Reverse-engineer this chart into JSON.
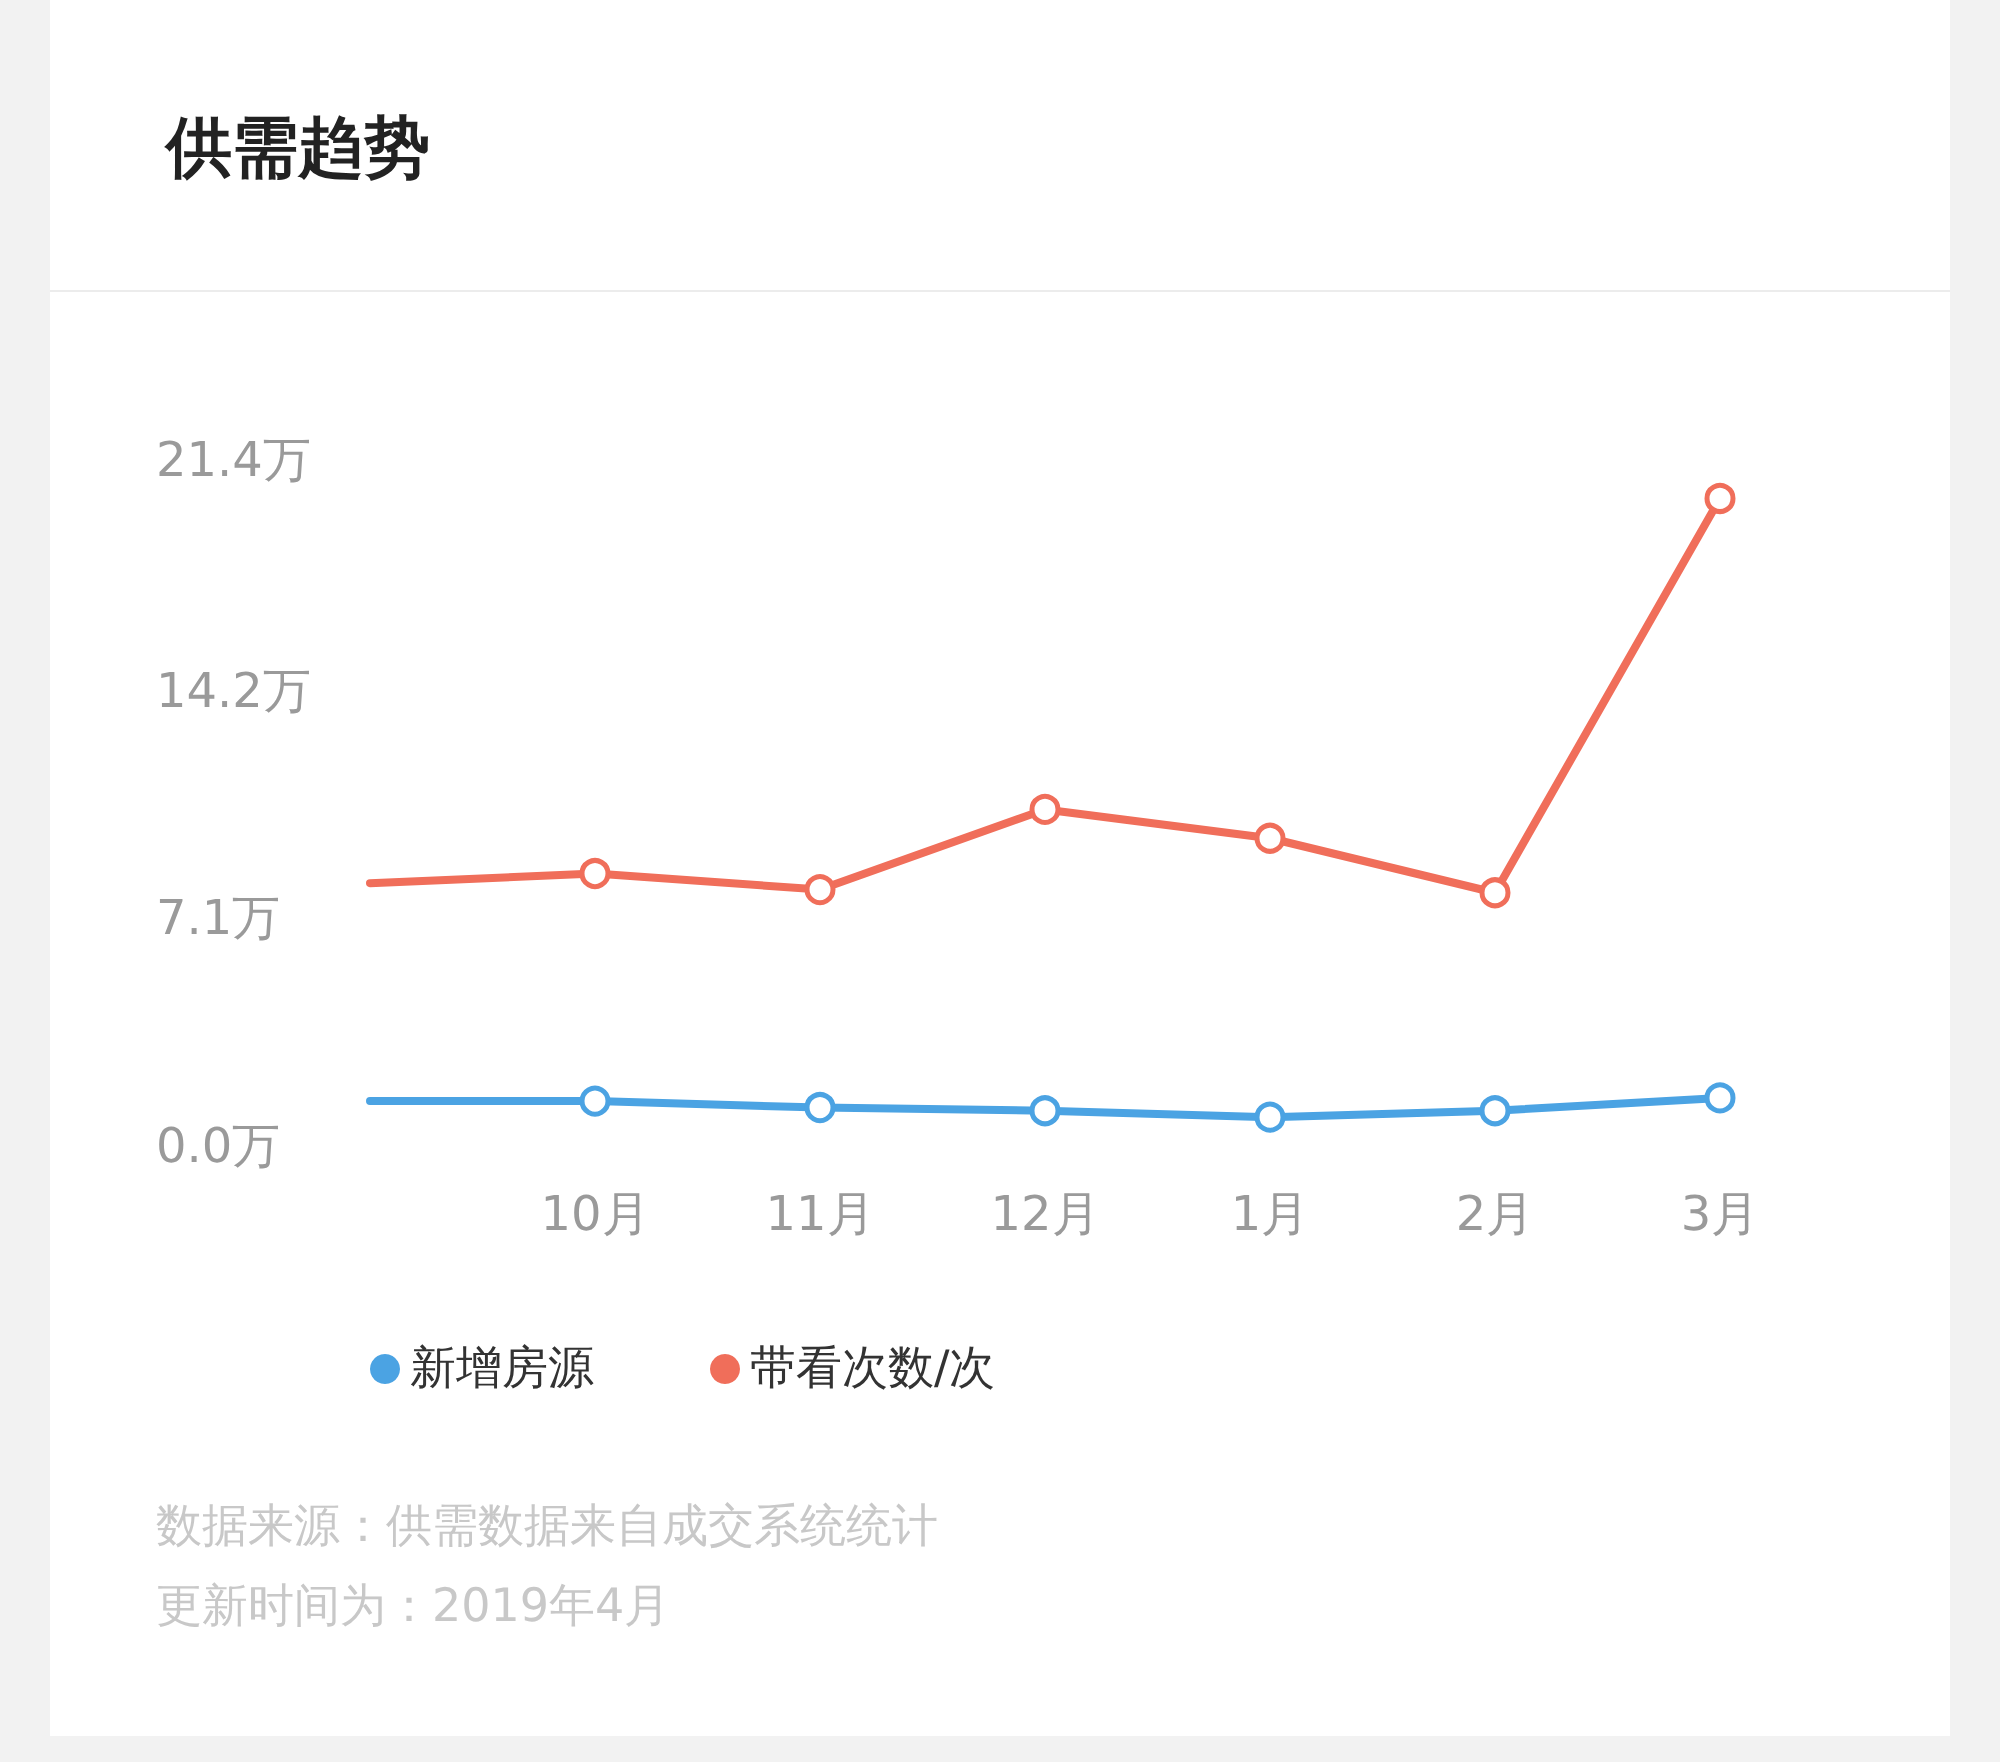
{
  "chart_data": {
    "type": "line",
    "title": "供需趋势",
    "categories": [
      null,
      "10月",
      "11月",
      "12月",
      "1月",
      "2月",
      "3月"
    ],
    "series": [
      {
        "name": "新增房源",
        "color": "#4ba3e3",
        "values": [
          1.4,
          1.4,
          1.2,
          1.1,
          0.9,
          1.1,
          1.5
        ]
      },
      {
        "name": "带看次数/次",
        "color": "#f06e5a",
        "values": [
          8.2,
          8.5,
          8.0,
          10.5,
          9.6,
          7.9,
          20.2
        ]
      }
    ],
    "ylim": [
      0,
      21.4
    ],
    "yticks": [
      {
        "value": 0,
        "label": "0.0万"
      },
      {
        "value": 7.1,
        "label": "7.1万"
      },
      {
        "value": 14.2,
        "label": "14.2万"
      },
      {
        "value": 21.4,
        "label": "21.4万"
      }
    ],
    "grid": false,
    "legend": "bottom",
    "marker": "circle",
    "line_style": "solid",
    "annotations": [
      "数据来源：供需数据来自成交系统统计",
      "更新时间为：2019年4月"
    ]
  }
}
